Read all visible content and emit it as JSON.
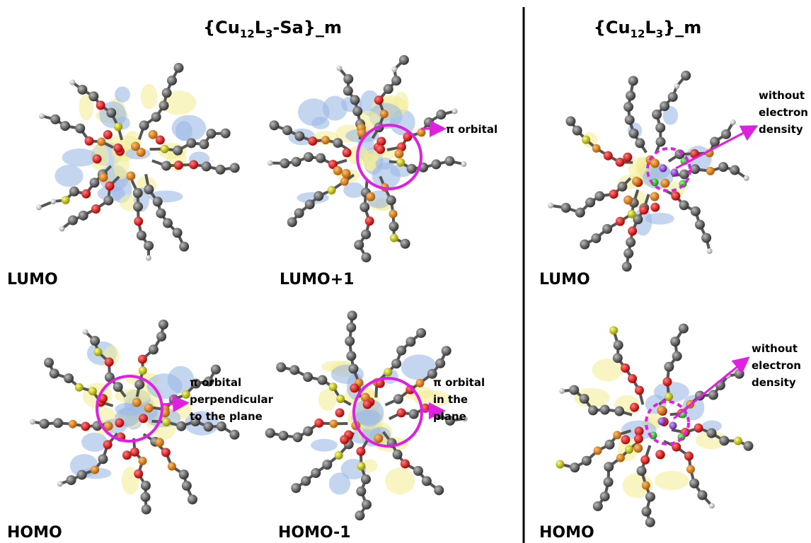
{
  "titles": [
    {
      "parts": [
        "{Cu",
        "12",
        "L",
        "3",
        "-Sa}_m"
      ]
    },
    {
      "parts": [
        "{Cu",
        "12",
        "L",
        "3",
        "}_m"
      ]
    }
  ],
  "panels": [
    {
      "label": "LUMO"
    },
    {
      "label": "LUMO+1",
      "note": [
        "π orbital"
      ]
    },
    {
      "label": "LUMO",
      "note": [
        "without",
        "electron",
        "density"
      ]
    },
    {
      "label": "HOMO",
      "note": [
        "π orbital",
        "perpendicular",
        "to the plane"
      ]
    },
    {
      "label": "HOMO-1",
      "note": [
        "π orbital",
        "in the",
        "plane"
      ]
    },
    {
      "label": "HOMO",
      "note": [
        "without",
        "electron",
        "density"
      ]
    }
  ]
}
